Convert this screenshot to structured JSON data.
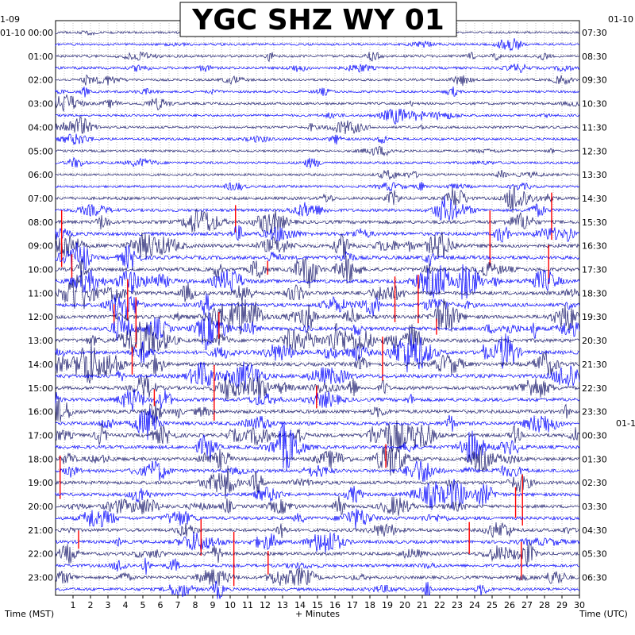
{
  "chart_data": {
    "type": "helicorder",
    "title": "YGC SHZ WY 01",
    "xlabel": "+ Minutes",
    "left_axis_title": "Time (MST)",
    "right_axis_title": "Time (UTC)",
    "x_ticks": [
      "1",
      "2",
      "3",
      "4",
      "5",
      "6",
      "7",
      "8",
      "9",
      "10",
      "11",
      "12",
      "13",
      "14",
      "15",
      "16",
      "17",
      "18",
      "19",
      "20",
      "21",
      "22",
      "23",
      "24",
      "25",
      "26",
      "27",
      "28",
      "29",
      "30"
    ],
    "xlim": [
      0,
      30
    ],
    "left_date_labels": [
      "1-09",
      "01-10"
    ],
    "right_date_labels": [
      "01-10",
      "01-1"
    ],
    "left_hour_labels": [
      "00:00",
      "01:00",
      "02:00",
      "03:00",
      "04:00",
      "05:00",
      "06:00",
      "07:00",
      "08:00",
      "09:00",
      "10:00",
      "11:00",
      "12:00",
      "13:00",
      "14:00",
      "15:00",
      "16:00",
      "17:00",
      "18:00",
      "19:00",
      "20:00",
      "21:00",
      "22:00",
      "23:00"
    ],
    "right_hour_labels": [
      "07:30",
      "08:30",
      "09:30",
      "10:30",
      "11:30",
      "12:30",
      "13:30",
      "14:30",
      "15:30",
      "16:30",
      "17:30",
      "18:30",
      "19:30",
      "20:30",
      "21:30",
      "22:30",
      "23:30",
      "00:30",
      "01:30",
      "02:30",
      "03:30",
      "04:30",
      "05:30",
      "06:30"
    ],
    "traces_per_hour": 2,
    "trace_colors": [
      "#1a1a6e",
      "#0000ff"
    ],
    "clip_color": "#ff0000",
    "grid": true,
    "activity_by_hour": [
      0.3,
      0.35,
      0.3,
      0.35,
      0.35,
      0.3,
      0.3,
      0.55,
      0.75,
      0.85,
      0.8,
      0.8,
      0.8,
      0.85,
      0.8,
      0.75,
      0.75,
      0.75,
      0.7,
      0.7,
      0.65,
      0.65,
      0.6,
      0.55
    ]
  }
}
